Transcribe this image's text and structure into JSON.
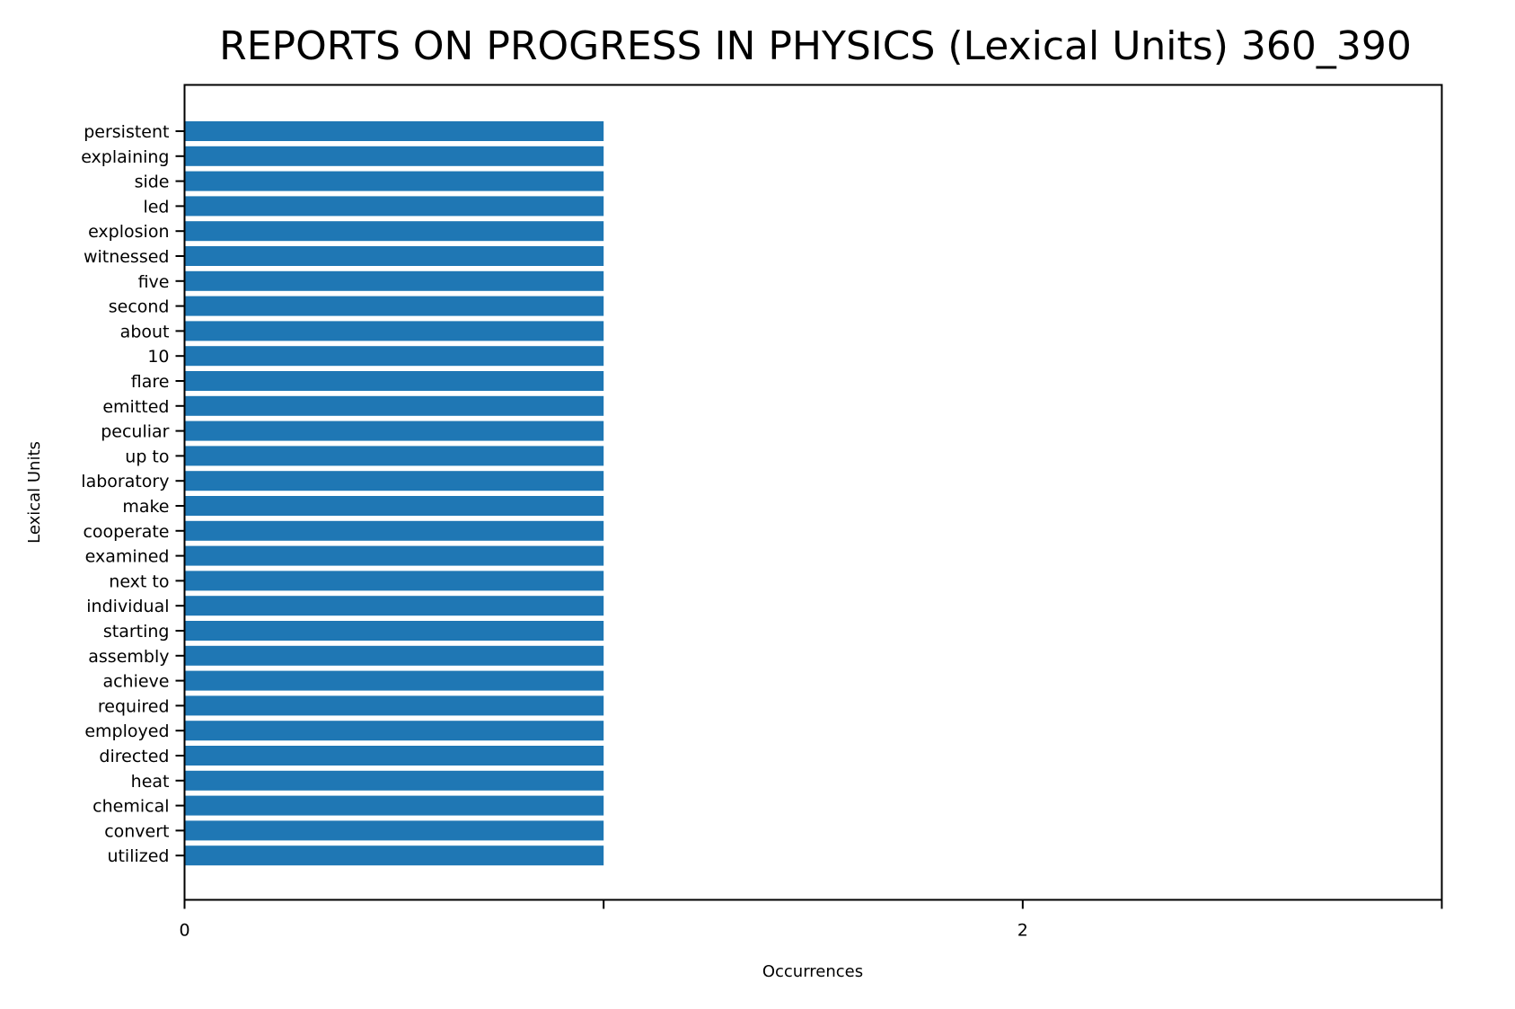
{
  "chart_data": {
    "type": "bar",
    "orientation": "horizontal",
    "title": "REPORTS ON PROGRESS IN PHYSICS (Lexical Units) 360_390",
    "xlabel": "Occurrences",
    "ylabel": "Lexical Units",
    "xlim": [
      0,
      3
    ],
    "x_ticks": [
      0,
      1,
      2,
      3
    ],
    "x_tick_labels": [
      "0",
      "",
      "2",
      ""
    ],
    "grid": false,
    "legend": "none",
    "bar_color": "#1f77b4",
    "categories": [
      "persistent",
      "explaining",
      "side",
      "led",
      "explosion",
      "witnessed",
      "five",
      "second",
      "about",
      "10",
      "flare",
      "emitted",
      "peculiar",
      "up to",
      "laboratory",
      "make",
      "cooperate",
      "examined",
      "next to",
      "individual",
      "starting",
      "assembly",
      "achieve",
      "required",
      "employed",
      "directed",
      "heat",
      "chemical",
      "convert",
      "utilized"
    ],
    "values": [
      1,
      1,
      1,
      1,
      1,
      1,
      1,
      1,
      1,
      1,
      1,
      1,
      1,
      1,
      1,
      1,
      1,
      1,
      1,
      1,
      1,
      1,
      1,
      1,
      1,
      1,
      1,
      1,
      1,
      1
    ]
  }
}
